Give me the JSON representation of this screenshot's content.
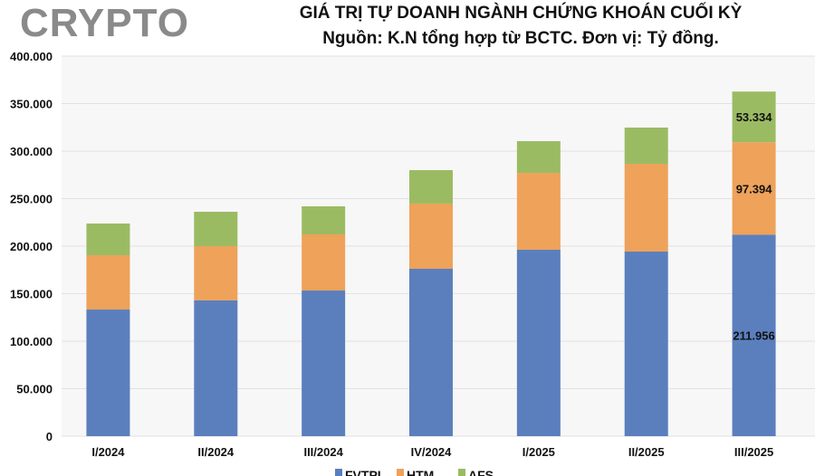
{
  "watermark": "CRYPTO",
  "chart_data": {
    "type": "bar",
    "stacked": true,
    "title": "GIÁ TRỊ TỰ DOANH NGÀNH CHỨNG KHOÁN CUỐI KỲ",
    "subtitle": "Nguồn: K.N tổng hợp từ BCTC. Đơn vị: Tỷ đồng.",
    "categories": [
      "I/2024",
      "II/2024",
      "III/2024",
      "IV/2024",
      "I/2025",
      "II/2025",
      "III/2025"
    ],
    "series": [
      {
        "name": "FVTPL",
        "color": "#5b7fbd",
        "values": [
          133300,
          142900,
          153300,
          176200,
          196200,
          194300,
          211956
        ]
      },
      {
        "name": "HTM",
        "color": "#eea25a",
        "values": [
          57200,
          57100,
          59100,
          68600,
          80900,
          92400,
          97394
        ]
      },
      {
        "name": "AFS",
        "color": "#9bbb63",
        "values": [
          33300,
          36200,
          29500,
          35200,
          33400,
          38100,
          53334
        ]
      }
    ],
    "data_labels": [
      {
        "category": "III/2025",
        "series": "FVTPL",
        "text": "211.956"
      },
      {
        "category": "III/2025",
        "series": "HTM",
        "text": "97.394"
      },
      {
        "category": "III/2025",
        "series": "AFS",
        "text": "53.334"
      }
    ],
    "yticks": [
      "0",
      "50.000",
      "100.000",
      "150.000",
      "200.000",
      "250.000",
      "300.000",
      "350.000",
      "400.000"
    ],
    "ylim": [
      0,
      400000
    ],
    "grid": true,
    "legend": "bottom"
  }
}
